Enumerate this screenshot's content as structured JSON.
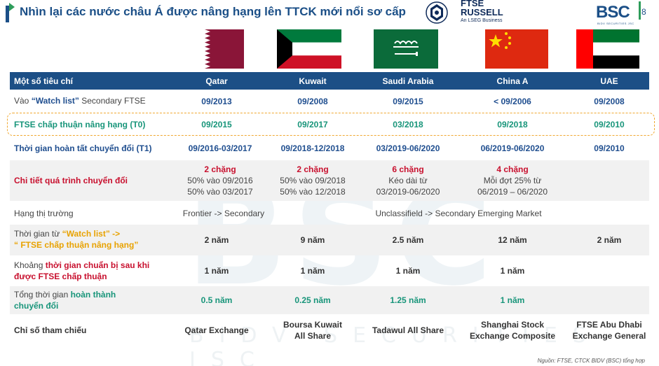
{
  "header": {
    "title": "Nhìn lại các nước châu Á được nâng hạng lên TTCK mới nổi sơ cấp",
    "ftse_logo_line1": "FTSE",
    "ftse_logo_line2": "RUSSELL",
    "ftse_logo_sub": "An LSEG Business",
    "bsc_logo": "BSC",
    "bsc_sub": "BIDV SECURITIES JSC",
    "page_number": "8"
  },
  "watermark": {
    "big": "BSC",
    "small": "BIDV SECURITIES JSC"
  },
  "flags": [
    {
      "country": "Qatar",
      "icon": "qatar-flag"
    },
    {
      "country": "Kuwait",
      "icon": "kuwait-flag"
    },
    {
      "country": "Saudi Arabia",
      "icon": "saudi-arabia-flag"
    },
    {
      "country": "China A",
      "icon": "china-flag"
    },
    {
      "country": "UAE",
      "icon": "uae-flag"
    }
  ],
  "table": {
    "columns": [
      "Một số tiêu chí",
      "Qatar",
      "Kuwait",
      "Saudi Arabia",
      "China A",
      "UAE"
    ],
    "rows": {
      "watchlist": {
        "label_prefix": "Vào ",
        "label_highlight": "“Watch list”",
        "label_suffix": " Secondary FTSE",
        "values": [
          "09/2013",
          "09/2008",
          "09/2015",
          "< 09/2006",
          "09/2008"
        ]
      },
      "approval": {
        "label": "FTSE chấp thuận nâng hạng (T0)",
        "values": [
          "09/2015",
          "09/2017",
          "03/2018",
          "09/2018",
          "09/2010"
        ]
      },
      "completion": {
        "label": "Thời gian hoàn tất chuyển đổi (T1)",
        "values": [
          "09/2016-03/2017",
          "09/2018-12/2018",
          "03/2019-06/2020",
          "06/2019-06/2020",
          "09/2010"
        ]
      },
      "detail": {
        "label": "Chi tiết quá trình chuyển đổi",
        "cells": [
          {
            "headline": "2 chặng",
            "line1": "50% vào 09/2016",
            "line2": "50% vào 03/2017"
          },
          {
            "headline": "2 chặng",
            "line1": "50% vào 09/2018",
            "line2": "50% vào 12/2018"
          },
          {
            "headline": "6 chặng",
            "line1": "Kéo dài từ",
            "line2": "03/2019-06/2020"
          },
          {
            "headline": "4 chặng",
            "line1": "Mỗi đợt 25% từ",
            "line2": "06/2019 – 06/2020"
          },
          {
            "headline": "",
            "line1": "",
            "line2": ""
          }
        ]
      },
      "market_class": {
        "label": "Hạng thị trường",
        "frontier": "Frontier -> Secondary",
        "unclassified": "Unclassifield -> Secondary Emerging Market"
      },
      "duration_watch": {
        "label_prefix": "Thời gian từ ",
        "label_hl1": "“Watch list” ->",
        "label_hl2": "“ FTSE chấp thuận nâng hạng”",
        "values": [
          "2 năm",
          "9 năm",
          "2.5 năm",
          "12 năm",
          "2 năm"
        ]
      },
      "prep_time": {
        "label_prefix": "Khoảng ",
        "label_hl1": "thời gian chuẩn bị sau khi",
        "label_hl2": "được FTSE chấp thuận",
        "values": [
          "1 năm",
          "1 năm",
          "1 năm",
          "1 năm",
          ""
        ]
      },
      "total_time": {
        "label_prefix": "Tổng thời gian ",
        "label_hl1": "hoàn thành",
        "label_hl2": "chuyển đổi",
        "values": [
          "0.5 năm",
          "0.25 năm",
          "1.25 năm",
          "1 năm",
          ""
        ]
      },
      "index": {
        "label": "Chỉ số tham chiếu",
        "cells": [
          {
            "line1": "Qatar Exchange",
            "line2": ""
          },
          {
            "line1": "Boursa Kuwait",
            "line2": "All Share"
          },
          {
            "line1": "Tadawul All Share",
            "line2": ""
          },
          {
            "line1": "Shanghai Stock",
            "line2": "Exchange Composite"
          },
          {
            "line1": "FTSE Abu Dhabi",
            "line2": "Exchange General"
          }
        ]
      }
    }
  },
  "footer": {
    "source": "Nguồn: FTSE, CTCK BIDV (BSC) tổng hợp"
  },
  "colors": {
    "primary_blue": "#1c4f86",
    "green": "#18957a",
    "red": "#c8102e",
    "orange": "#e8a200"
  }
}
